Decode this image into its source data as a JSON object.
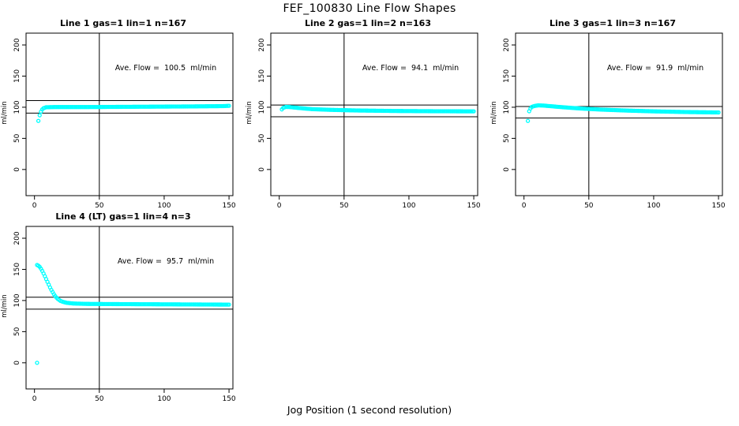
{
  "title": "FEF_100830  Line Flow Shapes",
  "xlabel": "Jog Position (1 second resolution)",
  "ylabel": "ml/min",
  "colors": {
    "marker": "#00FFFF",
    "axis": "#000000",
    "background": "#FFFFFF"
  },
  "axes": {
    "x_ticks": [
      0,
      50,
      100,
      150
    ],
    "y_ticks": [
      0,
      50,
      100,
      150,
      200
    ],
    "xlim": [
      0,
      150
    ],
    "ylim": [
      -30,
      210
    ],
    "vline_x": 50,
    "grid": false
  },
  "chart_data": [
    {
      "type": "scatter",
      "title": "Line 1 gas=1 lin=1 n=167",
      "annotation": "Ave. Flow =  100.5  ml/min",
      "ave_flow_ml_min": 100.5,
      "n": 167,
      "hlines": [
        110.6,
        90.5
      ],
      "vline_x": 50,
      "outlier_points": [
        [
          3,
          78
        ]
      ],
      "profile": [
        [
          4,
          87
        ],
        [
          5,
          93
        ],
        [
          6,
          96.5
        ],
        [
          7,
          98.5
        ],
        [
          9,
          100
        ],
        [
          15,
          100.3
        ],
        [
          40,
          100.3
        ],
        [
          80,
          100.8
        ],
        [
          120,
          101.3
        ],
        [
          145,
          101.8
        ],
        [
          150,
          102.3
        ]
      ]
    },
    {
      "type": "scatter",
      "title": "Line 2 gas=1 lin=2 n=163",
      "annotation": "Ave. Flow =  94.1  ml/min",
      "ave_flow_ml_min": 94.1,
      "n": 163,
      "hlines": [
        103.5,
        84.7
      ],
      "vline_x": 50,
      "outlier_points": [],
      "profile": [
        [
          2,
          96.5
        ],
        [
          3,
          99
        ],
        [
          5,
          100.5
        ],
        [
          8,
          100.3
        ],
        [
          15,
          98.8
        ],
        [
          25,
          97
        ],
        [
          40,
          95.8
        ],
        [
          60,
          94.8
        ],
        [
          90,
          94
        ],
        [
          120,
          93.6
        ],
        [
          150,
          93.4
        ]
      ]
    },
    {
      "type": "scatter",
      "title": "Line 3 gas=1 lin=3 n=167",
      "annotation": "Ave. Flow =  91.9  ml/min",
      "ave_flow_ml_min": 91.9,
      "n": 167,
      "hlines": [
        101.1,
        82.7
      ],
      "vline_x": 50,
      "outlier_points": [
        [
          3,
          78
        ]
      ],
      "profile": [
        [
          4,
          93.5
        ],
        [
          5,
          98
        ],
        [
          6,
          100.5
        ],
        [
          8,
          102
        ],
        [
          11,
          103
        ],
        [
          15,
          102.7
        ],
        [
          20,
          101.8
        ],
        [
          30,
          100
        ],
        [
          45,
          97.8
        ],
        [
          60,
          96.2
        ],
        [
          80,
          94.6
        ],
        [
          100,
          93.4
        ],
        [
          125,
          92.3
        ],
        [
          150,
          91.6
        ]
      ]
    },
    {
      "type": "scatter",
      "title": "Line 4 (LT) gas=1 lin=4 n=3",
      "annotation": "Ave. Flow =  95.7  ml/min",
      "ave_flow_ml_min": 95.7,
      "n": 3,
      "hlines": [
        105.3,
        86.1
      ],
      "vline_x": 50,
      "outlier_points": [
        [
          2,
          0
        ]
      ],
      "profile": [
        [
          2,
          157
        ],
        [
          3,
          156
        ],
        [
          4,
          154
        ],
        [
          5,
          151
        ],
        [
          6,
          147.5
        ],
        [
          7,
          143.5
        ],
        [
          8,
          139
        ],
        [
          9,
          134.5
        ],
        [
          10,
          130
        ],
        [
          11,
          125.5
        ],
        [
          12,
          121
        ],
        [
          13,
          117
        ],
        [
          14,
          113.5
        ],
        [
          15,
          110
        ],
        [
          16,
          107
        ],
        [
          17,
          104.5
        ],
        [
          18,
          102.5
        ],
        [
          20,
          99.5
        ],
        [
          22,
          97.8
        ],
        [
          25,
          96.3
        ],
        [
          30,
          95.2
        ],
        [
          40,
          94.6
        ],
        [
          60,
          94.3
        ],
        [
          90,
          94
        ],
        [
          120,
          93.7
        ],
        [
          150,
          93.4
        ]
      ]
    }
  ]
}
